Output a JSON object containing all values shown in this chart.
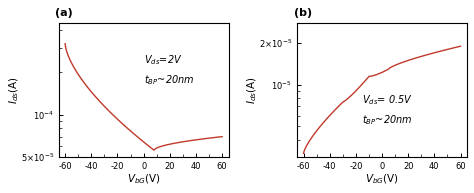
{
  "line_color": "#c0392b",
  "background_color": "#ffffff",
  "panel_a": {
    "label": "(a)",
    "xlabel": "$V_{bG}$(V)",
    "ylabel": "$I_{ds}$(A)",
    "xlim": [
      -65,
      65
    ],
    "ylim_log": [
      5e-05,
      0.00045
    ],
    "annotation1": "$V_{ds}$=2V",
    "annotation2": "$t_{BP}$~20nm",
    "xticks": [
      -60,
      -40,
      -20,
      0,
      20,
      40,
      60
    ],
    "ytick_vals": [
      5e-05,
      0.0001
    ],
    "ytick_strs": [
      "$5{\\times}10^{-5}$",
      "$10^{-4}$"
    ]
  },
  "panel_b": {
    "label": "(b)",
    "xlabel": "$V_{bG}$(V)",
    "ylabel": "$I_{ds}$(A)",
    "xlim": [
      -65,
      65
    ],
    "ylim_log": [
      3e-06,
      2.8e-05
    ],
    "annotation1": "$V_{ds}$= 0.5V",
    "annotation2": "$t_{BP}$~20nm",
    "xticks": [
      -60,
      -40,
      -20,
      0,
      20,
      40,
      60
    ],
    "ytick_vals": [
      1e-05
    ],
    "ytick_strs": [
      "$10^{-5}$"
    ],
    "ytop_val": 2e-05,
    "ytop_str": "$2{\\times}10^{-5}$"
  }
}
